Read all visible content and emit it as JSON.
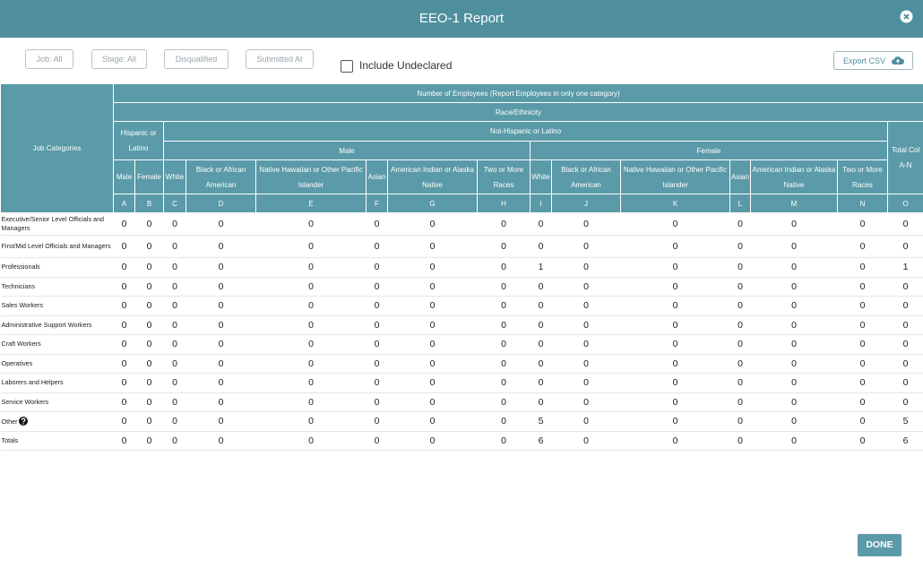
{
  "header": {
    "title": "EEO-1 Report"
  },
  "filters": [
    "Job: All",
    "Stage: All",
    "Disqualified",
    "Submitted At"
  ],
  "include_undeclared": "Include Undeclared",
  "export": "Export CSV",
  "table": {
    "job_categories_header": "Job Categories",
    "top_header": "Number of Employees (Report Employees in only one category)",
    "race_header": "Race/Ethnicity",
    "hispanic_header": "Hispanic or Latino",
    "non_hispanic_header": "Not-Hispanic or Latino",
    "male_header": "Male",
    "female_header": "Female",
    "total_header": "Total Col A-N",
    "columns": [
      "Male",
      "Female",
      "White",
      "Black or African American",
      "Native Hawaiian or Other Pacific Islander",
      "Asian",
      "American Indian or Alaska Native",
      "Two or More Races",
      "White",
      "Black or African American",
      "Native Hawaiian or Other Pacific Islander",
      "Asian",
      "American Indian or Alaska Native",
      "Two or More Races"
    ],
    "letters": [
      "A",
      "B",
      "C",
      "D",
      "E",
      "F",
      "G",
      "H",
      "I",
      "J",
      "K",
      "L",
      "M",
      "N",
      "O"
    ],
    "rows": [
      {
        "label": "Executive/Senior Level Officials and Managers",
        "values": [
          0,
          0,
          0,
          0,
          0,
          0,
          0,
          0,
          0,
          0,
          0,
          0,
          0,
          0,
          0
        ]
      },
      {
        "label": "First/Mid Level Officials and Managers",
        "values": [
          0,
          0,
          0,
          0,
          0,
          0,
          0,
          0,
          0,
          0,
          0,
          0,
          0,
          0,
          0
        ]
      },
      {
        "label": "Professionals",
        "values": [
          0,
          0,
          0,
          0,
          0,
          0,
          0,
          0,
          1,
          0,
          0,
          0,
          0,
          0,
          1
        ]
      },
      {
        "label": "Technicians",
        "values": [
          0,
          0,
          0,
          0,
          0,
          0,
          0,
          0,
          0,
          0,
          0,
          0,
          0,
          0,
          0
        ]
      },
      {
        "label": "Sales Workers",
        "values": [
          0,
          0,
          0,
          0,
          0,
          0,
          0,
          0,
          0,
          0,
          0,
          0,
          0,
          0,
          0
        ]
      },
      {
        "label": "Administrative Support Workers",
        "values": [
          0,
          0,
          0,
          0,
          0,
          0,
          0,
          0,
          0,
          0,
          0,
          0,
          0,
          0,
          0
        ]
      },
      {
        "label": "Craft Workers",
        "values": [
          0,
          0,
          0,
          0,
          0,
          0,
          0,
          0,
          0,
          0,
          0,
          0,
          0,
          0,
          0
        ]
      },
      {
        "label": "Operatives",
        "values": [
          0,
          0,
          0,
          0,
          0,
          0,
          0,
          0,
          0,
          0,
          0,
          0,
          0,
          0,
          0
        ]
      },
      {
        "label": "Laborers and Helpers",
        "values": [
          0,
          0,
          0,
          0,
          0,
          0,
          0,
          0,
          0,
          0,
          0,
          0,
          0,
          0,
          0
        ]
      },
      {
        "label": "Service Workers",
        "values": [
          0,
          0,
          0,
          0,
          0,
          0,
          0,
          0,
          0,
          0,
          0,
          0,
          0,
          0,
          0
        ]
      },
      {
        "label": "Other",
        "values": [
          0,
          0,
          0,
          0,
          0,
          0,
          0,
          0,
          5,
          0,
          0,
          0,
          0,
          0,
          5
        ]
      },
      {
        "label": "Totals",
        "values": [
          0,
          0,
          0,
          0,
          0,
          0,
          0,
          0,
          6,
          0,
          0,
          0,
          0,
          0,
          6
        ]
      }
    ]
  },
  "done": "DONE"
}
